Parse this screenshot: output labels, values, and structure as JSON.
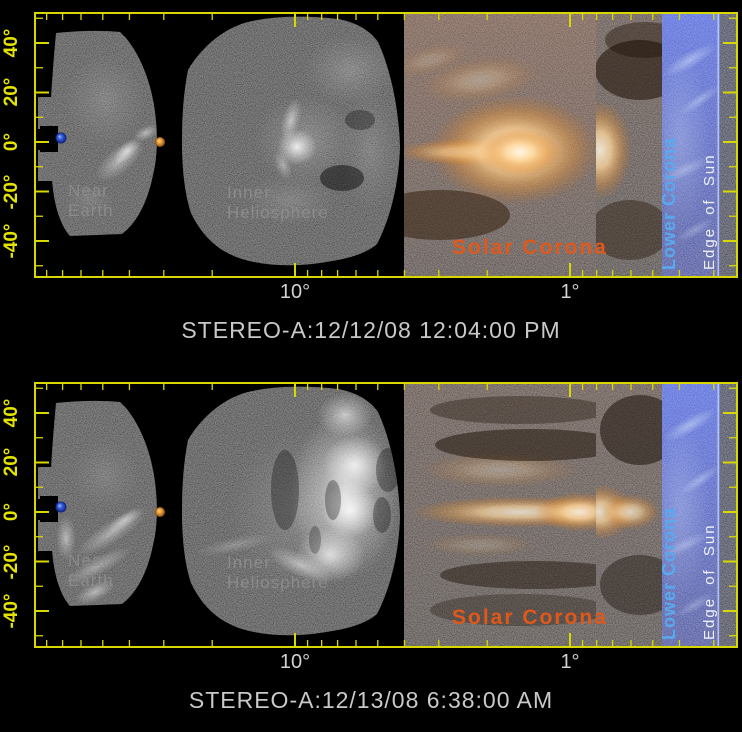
{
  "panels": [
    {
      "caption": "STEREO-A:12/12/08 12:04:00 PM"
    },
    {
      "caption": "STEREO-A:12/13/08 6:38:00 AM"
    }
  ],
  "axes": {
    "y_tick_labels": [
      "40°",
      "20°",
      "0°",
      "-20°",
      "-40°"
    ],
    "x_tick_labels": [
      "10°",
      "1°"
    ],
    "x_ticks_deg": [
      80,
      70,
      60,
      50,
      40,
      30,
      20,
      10,
      9,
      8,
      7,
      6,
      5,
      4,
      3,
      2,
      1,
      0.9,
      0.8,
      0.7,
      0.6,
      0.5,
      0.4,
      0.3
    ],
    "x_major_deg": [
      10,
      1
    ],
    "y_ticks_deg": [
      50,
      40,
      30,
      20,
      10,
      0,
      -10,
      -20,
      -30,
      -40,
      -50
    ],
    "y_major_deg": [
      40,
      20,
      0,
      -20,
      -40
    ]
  },
  "labels": {
    "near_earth_l1": "Near",
    "near_earth_l2": "Earth",
    "inner_l1": "Inner",
    "inner_l2": "Heliosphere",
    "solar_corona": "Solar Corona",
    "lower_corona": "Lower Corona",
    "edge_of_sun": "Edge of Sun"
  },
  "colors": {
    "frame": "#d8d800",
    "y_label": "#e4e400",
    "x_label": "#d2d2d2",
    "caption": "#c9c9c9",
    "near_label": "#8e8e8e",
    "solar_corona_label": "#e0581a",
    "lower_corona_label": "#58aaee",
    "edge_label": "#eef2f8",
    "earth_marker": "#2a52d8",
    "planet_marker": "#e09030"
  },
  "chart_data": [
    {
      "type": "heatmap",
      "title": "STEREO-A:12/12/08 12:04:00 PM",
      "x_axis": {
        "scale": "log",
        "unit": "degrees elongation from Sun",
        "tick_labels": [
          "10°",
          "1°"
        ],
        "range": [
          80,
          0.3
        ],
        "direction": "decreasing toward Sun at right"
      },
      "y_axis": {
        "unit": "degrees helio latitude",
        "tick_labels": [
          "40°",
          "20°",
          "0°",
          "-20°",
          "-40°"
        ],
        "range": [
          -52,
          52
        ]
      },
      "regions": [
        "Near Earth",
        "Inner Heliosphere",
        "Solar Corona",
        "Lower Corona",
        "Edge of Sun"
      ],
      "markers": [
        {
          "name": "Earth",
          "elongation_deg": 71,
          "latitude_deg": 1
        },
        {
          "name": "planet",
          "elongation_deg": 31,
          "latitude_deg": 0
        }
      ],
      "annotation": "Bright CME cloud near 8-15 deg elongation; intense white flare glow in Solar Corona strip"
    },
    {
      "type": "heatmap",
      "title": "STEREO-A:12/13/08 6:38:00 AM",
      "x_axis": {
        "scale": "log",
        "unit": "degrees elongation from Sun",
        "tick_labels": [
          "10°",
          "1°"
        ],
        "range": [
          80,
          0.3
        ],
        "direction": "decreasing toward Sun at right"
      },
      "y_axis": {
        "unit": "degrees helio latitude",
        "tick_labels": [
          "40°",
          "20°",
          "0°",
          "-20°",
          "-40°"
        ],
        "range": [
          -52,
          52
        ]
      },
      "regions": [
        "Near Earth",
        "Inner Heliosphere",
        "Solar Corona",
        "Lower Corona",
        "Edge of Sun"
      ],
      "markers": [
        {
          "name": "Earth",
          "elongation_deg": 71,
          "latitude_deg": 1
        },
        {
          "name": "planet",
          "elongation_deg": 31,
          "latitude_deg": 0
        }
      ],
      "annotation": "CME front expanded across Inner Heliosphere wedge; horizontal streamer band in Solar Corona strip"
    }
  ]
}
